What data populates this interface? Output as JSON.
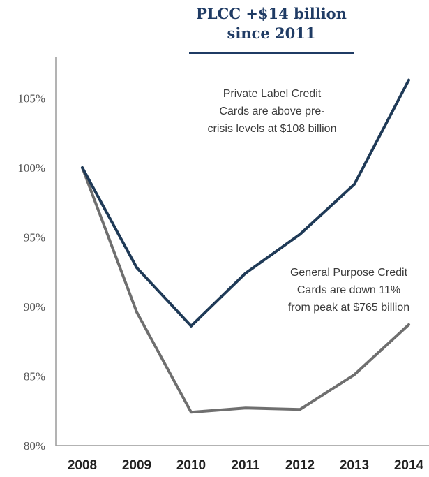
{
  "chart_data": {
    "type": "line",
    "title_lines": [
      "PLCC +$14 billion",
      "since 2011"
    ],
    "x": [
      "2008",
      "2009",
      "2010",
      "2011",
      "2012",
      "2013",
      "2014"
    ],
    "y_ticks": [
      "105%",
      "100%",
      "95%",
      "90%",
      "85%",
      "80%"
    ],
    "y_tick_values": [
      105,
      100,
      95,
      90,
      85,
      80
    ],
    "ylim": [
      80,
      107.5
    ],
    "grid": false,
    "series": [
      {
        "name": "Private Label Credit Cards",
        "color": "#1f3a57",
        "values": [
          100,
          92.8,
          88.6,
          92.4,
          95.2,
          98.8,
          106.3
        ]
      },
      {
        "name": "General Purpose Credit Cards",
        "color": "#6f6f6f",
        "values": [
          100,
          89.6,
          82.4,
          82.7,
          82.6,
          85.1,
          88.7
        ]
      }
    ],
    "annotations": [
      {
        "lines": [
          "Private Label Credit",
          "Cards are above pre-",
          "crisis levels at $108 billion"
        ]
      },
      {
        "lines": [
          "General Purpose Credit",
          "Cards are down 11%",
          "from peak at $765 billion"
        ]
      }
    ]
  }
}
